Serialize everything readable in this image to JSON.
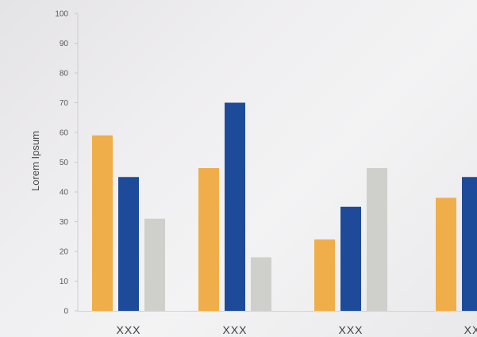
{
  "chart_data": {
    "type": "bar",
    "title": "",
    "xlabel": "",
    "ylabel": "Lorem Ipsum",
    "ylim": [
      0,
      100
    ],
    "yticks": [
      0,
      10,
      20,
      30,
      40,
      50,
      60,
      70,
      80,
      90,
      100
    ],
    "categories": [
      "XXX",
      "XXX",
      "XXX",
      "XX"
    ],
    "series": [
      {
        "color": "#efae49",
        "values": [
          59,
          48,
          24,
          38
        ]
      },
      {
        "color": "#1d4b9a",
        "values": [
          45,
          70,
          35,
          45
        ]
      },
      {
        "color": "#cfcfcb",
        "values": [
          31,
          18,
          48,
          null
        ]
      }
    ],
    "grid": false,
    "legend": "none"
  }
}
